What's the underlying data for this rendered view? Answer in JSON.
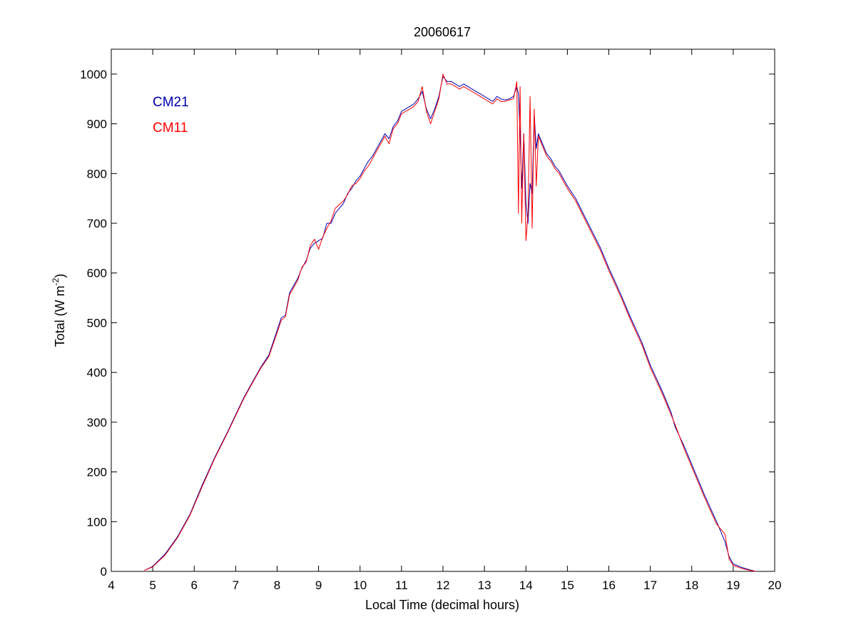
{
  "chart_data": {
    "type": "line",
    "title": "20060617",
    "xlabel": "Local Time (decimal hours)",
    "ylabel": {
      "main": "Total (W m",
      "sup": "-2",
      "close": ")"
    },
    "xlim": [
      4,
      20
    ],
    "ylim": [
      0,
      1050
    ],
    "xticks": [
      4,
      5,
      6,
      7,
      8,
      9,
      10,
      11,
      12,
      13,
      14,
      15,
      16,
      17,
      18,
      19,
      20
    ],
    "yticks": [
      0,
      100,
      200,
      300,
      400,
      500,
      600,
      700,
      800,
      900,
      1000
    ],
    "grid": false,
    "legend_position": "top-left",
    "series": [
      {
        "name": "CM21",
        "color": "#0000b0",
        "x": [
          4.8,
          5.0,
          5.3,
          5.6,
          5.9,
          6.2,
          6.5,
          6.8,
          7.0,
          7.2,
          7.4,
          7.6,
          7.8,
          8.0,
          8.1,
          8.2,
          8.3,
          8.5,
          8.6,
          8.7,
          8.8,
          8.9,
          9.0,
          9.1,
          9.2,
          9.3,
          9.4,
          9.6,
          9.7,
          9.8,
          9.9,
          10.0,
          10.1,
          10.2,
          10.3,
          10.4,
          10.5,
          10.6,
          10.7,
          10.8,
          10.9,
          11.0,
          11.1,
          11.2,
          11.3,
          11.4,
          11.5,
          11.6,
          11.7,
          11.8,
          11.9,
          12.0,
          12.1,
          12.2,
          12.3,
          12.4,
          12.5,
          12.6,
          12.7,
          12.8,
          12.9,
          13.0,
          13.1,
          13.2,
          13.3,
          13.4,
          13.5,
          13.6,
          13.7,
          13.78,
          13.82,
          13.86,
          13.9,
          13.95,
          14.0,
          14.05,
          14.1,
          14.15,
          14.2,
          14.25,
          14.3,
          14.35,
          14.4,
          14.5,
          14.6,
          14.7,
          14.8,
          14.9,
          15.0,
          15.2,
          15.5,
          15.8,
          16.0,
          16.3,
          16.5,
          16.8,
          17.0,
          17.3,
          17.5,
          17.6,
          17.8,
          18.0,
          18.3,
          18.6,
          18.8,
          18.9,
          19.0,
          19.2,
          19.4,
          19.55
        ],
        "y": [
          2,
          10,
          35,
          70,
          115,
          175,
          230,
          280,
          315,
          350,
          380,
          410,
          435,
          485,
          510,
          515,
          560,
          590,
          610,
          625,
          650,
          660,
          665,
          670,
          700,
          700,
          720,
          740,
          760,
          770,
          785,
          795,
          810,
          825,
          835,
          850,
          865,
          880,
          870,
          895,
          905,
          925,
          930,
          935,
          940,
          950,
          965,
          930,
          910,
          930,
          955,
          995,
          985,
          985,
          980,
          975,
          980,
          975,
          970,
          965,
          960,
          955,
          950,
          945,
          955,
          950,
          948,
          950,
          955,
          975,
          960,
          880,
          770,
          880,
          740,
          700,
          780,
          760,
          920,
          850,
          880,
          870,
          860,
          840,
          830,
          815,
          805,
          790,
          775,
          750,
          700,
          650,
          610,
          555,
          515,
          460,
          415,
          360,
          320,
          290,
          255,
          215,
          155,
          100,
          60,
          30,
          15,
          8,
          3,
          0
        ]
      },
      {
        "name": "CM11",
        "color": "#ff0000",
        "x": [
          4.8,
          5.0,
          5.3,
          5.6,
          5.9,
          6.2,
          6.5,
          6.8,
          7.0,
          7.2,
          7.4,
          7.6,
          7.8,
          8.0,
          8.1,
          8.2,
          8.3,
          8.5,
          8.6,
          8.7,
          8.8,
          8.9,
          9.0,
          9.1,
          9.2,
          9.3,
          9.4,
          9.6,
          9.7,
          9.8,
          9.9,
          10.0,
          10.1,
          10.2,
          10.3,
          10.4,
          10.5,
          10.6,
          10.7,
          10.8,
          10.9,
          11.0,
          11.1,
          11.2,
          11.3,
          11.4,
          11.5,
          11.6,
          11.7,
          11.8,
          11.9,
          12.0,
          12.1,
          12.2,
          12.3,
          12.4,
          12.5,
          12.6,
          12.7,
          12.8,
          12.9,
          13.0,
          13.1,
          13.2,
          13.3,
          13.4,
          13.5,
          13.6,
          13.7,
          13.78,
          13.82,
          13.86,
          13.9,
          13.95,
          14.0,
          14.05,
          14.1,
          14.15,
          14.2,
          14.25,
          14.3,
          14.35,
          14.4,
          14.5,
          14.6,
          14.7,
          14.8,
          14.9,
          15.0,
          15.2,
          15.5,
          15.8,
          16.0,
          16.3,
          16.5,
          16.8,
          17.0,
          17.3,
          17.5,
          17.6,
          17.8,
          18.0,
          18.3,
          18.6,
          18.8,
          18.9,
          19.0,
          19.2,
          19.4,
          19.55
        ],
        "y": [
          2,
          9,
          33,
          68,
          113,
          172,
          228,
          278,
          313,
          348,
          378,
          408,
          432,
          480,
          505,
          512,
          556,
          586,
          612,
          622,
          655,
          668,
          648,
          672,
          690,
          705,
          730,
          745,
          758,
          775,
          780,
          790,
          805,
          815,
          830,
          845,
          860,
          875,
          860,
          890,
          900,
          920,
          925,
          930,
          935,
          945,
          975,
          925,
          900,
          925,
          950,
          1000,
          980,
          980,
          975,
          970,
          975,
          970,
          965,
          960,
          955,
          950,
          945,
          940,
          950,
          945,
          945,
          948,
          950,
          985,
          720,
          975,
          700,
          880,
          665,
          720,
          955,
          690,
          930,
          775,
          875,
          865,
          855,
          835,
          825,
          810,
          800,
          785,
          770,
          745,
          695,
          645,
          605,
          550,
          510,
          455,
          410,
          355,
          315,
          295,
          250,
          210,
          150,
          95,
          75,
          25,
          12,
          6,
          2,
          0
        ]
      }
    ]
  }
}
